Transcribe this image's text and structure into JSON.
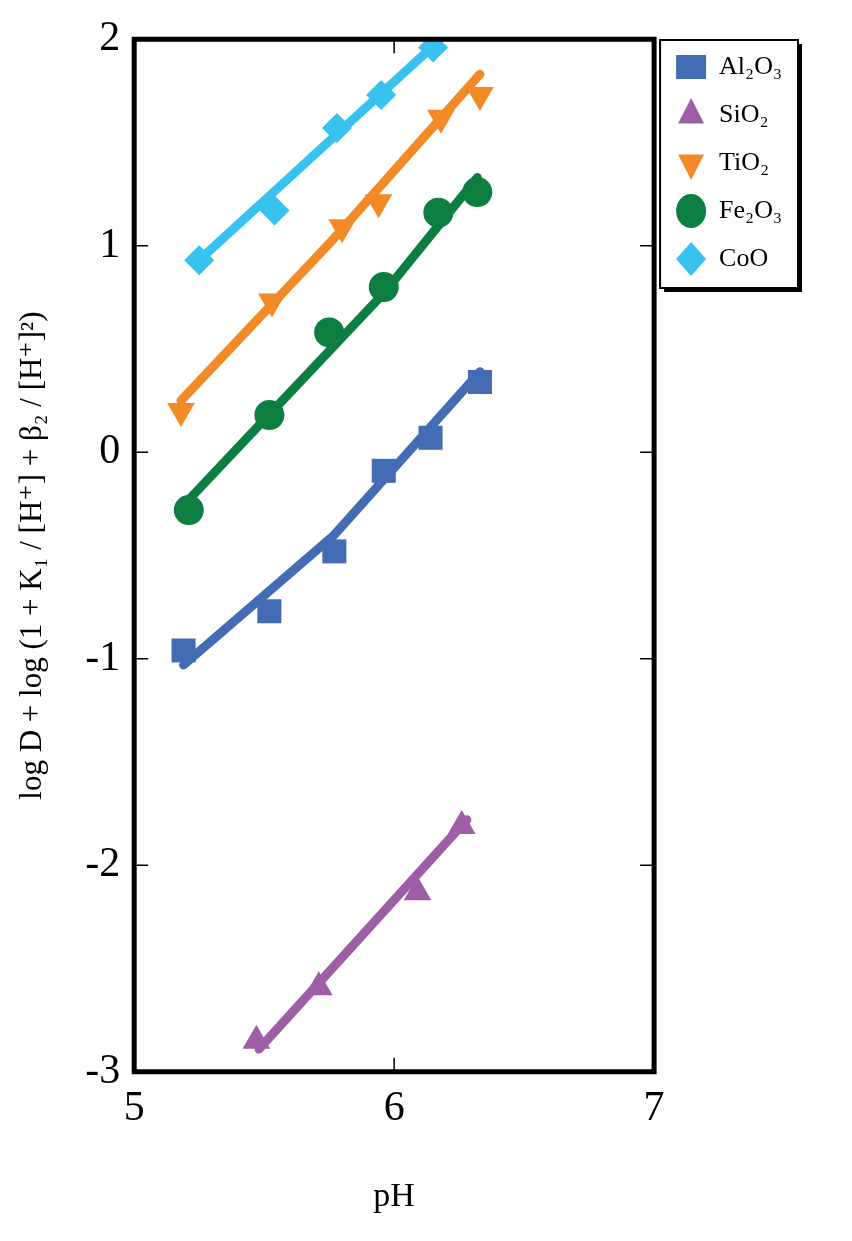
{
  "chart_data": {
    "type": "scatter",
    "xlabel": "pH",
    "ylabel": "log D + log (1 + K₁ / [H⁺] + β₂ / [H⁺]²)",
    "xlim": [
      5,
      7
    ],
    "xticks": [
      5,
      6,
      7
    ],
    "ylim": [
      -3,
      2
    ],
    "yticks": [
      -3,
      -2,
      -1,
      0,
      1,
      2
    ],
    "grid": false,
    "legend": "right",
    "series": [
      {
        "name": "Al₂O₃",
        "color": "#436cb4",
        "marker": "square",
        "x": [
          5.19,
          5.52,
          5.77,
          5.96,
          6.14,
          6.33
        ],
        "values": [
          -0.96,
          -0.77,
          -0.48,
          -0.09,
          0.07,
          0.34
        ]
      },
      {
        "name": "SiO₂",
        "color": "#9e5ea6",
        "marker": "triangle",
        "x": [
          5.47,
          5.71,
          6.09,
          6.26
        ],
        "values": [
          -2.85,
          -2.59,
          -2.13,
          -1.81
        ]
      },
      {
        "name": "TiO₂",
        "color": "#f28a28",
        "marker": "triangle-down",
        "x": [
          5.18,
          5.53,
          5.8,
          5.94,
          6.18,
          6.33
        ],
        "values": [
          0.2,
          0.73,
          1.09,
          1.21,
          1.62,
          1.73
        ]
      },
      {
        "name": "Fe₂O₃",
        "color": "#0c7e40",
        "marker": "circle",
        "x": [
          5.21,
          5.52,
          5.75,
          5.96,
          6.17,
          6.32
        ],
        "values": [
          -0.28,
          0.18,
          0.58,
          0.8,
          1.16,
          1.26
        ]
      },
      {
        "name": "CoO",
        "color": "#38c2f0",
        "marker": "diamond",
        "x": [
          5.25,
          5.54,
          5.78,
          5.95,
          6.15
        ],
        "values": [
          0.93,
          1.17,
          1.57,
          1.73,
          1.96
        ]
      },
      {
        "type": "line",
        "color": "#436cb4",
        "marker": "none",
        "x": [
          5.19,
          5.77,
          6.33
        ],
        "values": [
          -1.03,
          -0.4,
          0.39
        ]
      },
      {
        "type": "line",
        "color": "#9e5ea6",
        "marker": "none",
        "x": [
          5.48,
          6.28
        ],
        "values": [
          -2.89,
          -1.78
        ]
      },
      {
        "type": "line",
        "color": "#f28a28",
        "marker": "none",
        "x": [
          5.18,
          5.75,
          6.33
        ],
        "values": [
          0.25,
          1.01,
          1.83
        ]
      },
      {
        "type": "line",
        "color": "#0c7e40",
        "marker": "none",
        "x": [
          5.21,
          5.96,
          6.32
        ],
        "values": [
          -0.23,
          0.77,
          1.33
        ]
      },
      {
        "type": "line",
        "color": "#38c2f0",
        "marker": "none",
        "x": [
          5.25,
          6.17
        ],
        "values": [
          0.93,
          1.99
        ]
      }
    ]
  }
}
